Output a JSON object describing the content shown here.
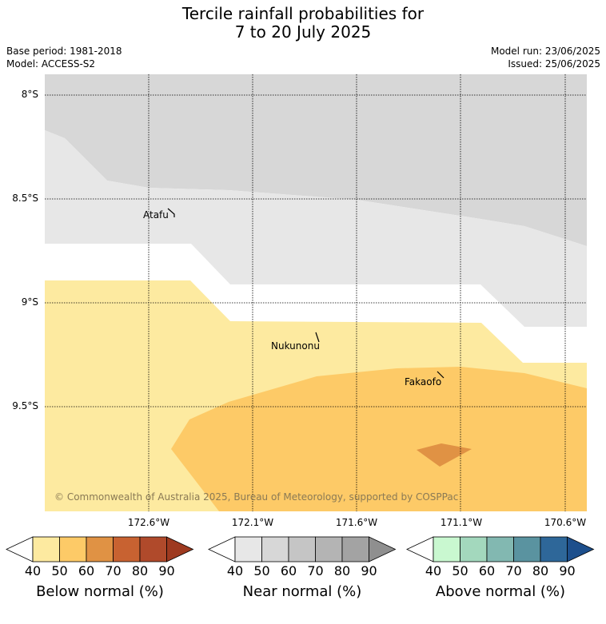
{
  "header": {
    "title_line1": "Tercile rainfall probabilities for",
    "title_line2": "7 to 20 July 2025",
    "base_period": "Base period: 1981-2018",
    "model": "Model: ACCESS-S2",
    "model_run": "Model run: 23/06/2025",
    "issued": "Issued: 25/06/2025"
  },
  "map": {
    "latitudes": [
      "8°S",
      "8.5°S",
      "9°S",
      "9.5°S"
    ],
    "longitudes": [
      "172.6°W",
      "172.1°W",
      "171.6°W",
      "171.1°W",
      "170.6°W"
    ],
    "places": [
      "Atafu",
      "Nukunonu",
      "Fakaofo"
    ],
    "copyright": "© Commonwealth of Australia 2025, Bureau of Meteorology, supported by COSPPac"
  },
  "colorbars": [
    {
      "label": "Below normal (%)",
      "ticks": [
        "40",
        "50",
        "60",
        "70",
        "80",
        "90"
      ],
      "colors": [
        "#ffffff",
        "#fdeaa0",
        "#fdca67",
        "#e09244",
        "#c86231",
        "#b04a2b",
        "#9e3a20"
      ]
    },
    {
      "label": "Near normal (%)",
      "ticks": [
        "40",
        "50",
        "60",
        "70",
        "80",
        "90"
      ],
      "colors": [
        "#ffffff",
        "#e7e7e7",
        "#d7d7d7",
        "#c5c5c5",
        "#b4b4b4",
        "#a3a3a3",
        "#8f8f8f"
      ]
    },
    {
      "label": "Above normal (%)",
      "ticks": [
        "40",
        "50",
        "60",
        "70",
        "80",
        "90"
      ],
      "colors": [
        "#ffffff",
        "#c9f8d0",
        "#a3d8bd",
        "#82b8b1",
        "#5a93a0",
        "#2e6799",
        "#1d4f8c"
      ]
    }
  ]
}
